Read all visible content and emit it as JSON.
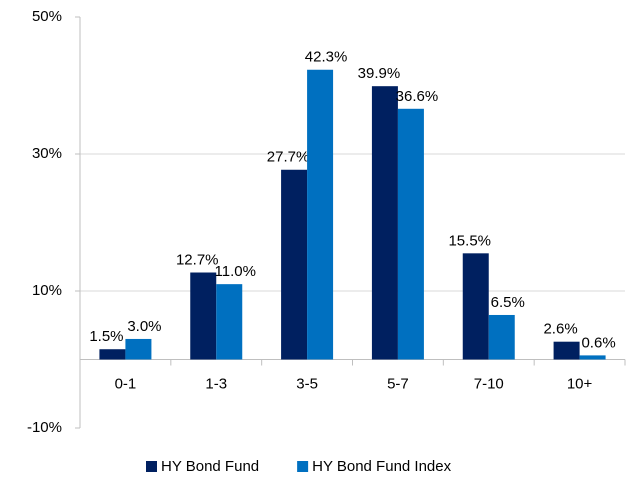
{
  "chart_data": {
    "type": "bar",
    "categories": [
      "0-1",
      "1-3",
      "3-5",
      "5-7",
      "7-10",
      "10+"
    ],
    "series": [
      {
        "name": "HY Bond Fund",
        "color": "#002060",
        "values": [
          1.5,
          12.7,
          27.7,
          39.9,
          15.5,
          2.6
        ],
        "value_labels": [
          "1.5%",
          "12.7%",
          "27.7%",
          "39.9%",
          "15.5%",
          "2.6%"
        ]
      },
      {
        "name": "HY Bond Fund Index",
        "color": "#0070c0",
        "values": [
          3.0,
          11.0,
          42.3,
          36.6,
          6.5,
          0.6
        ],
        "value_labels": [
          "3.0%",
          "11.0%",
          "42.3%",
          "36.6%",
          "6.5%",
          "0.6%"
        ]
      }
    ],
    "ylim": [
      -10,
      50
    ],
    "yticks": [
      {
        "value": -10,
        "label": "-10%"
      },
      {
        "value": 10,
        "label": "10%"
      },
      {
        "value": 30,
        "label": "30%"
      },
      {
        "value": 50,
        "label": "50%"
      }
    ],
    "grid": true,
    "legend": "bottom"
  }
}
